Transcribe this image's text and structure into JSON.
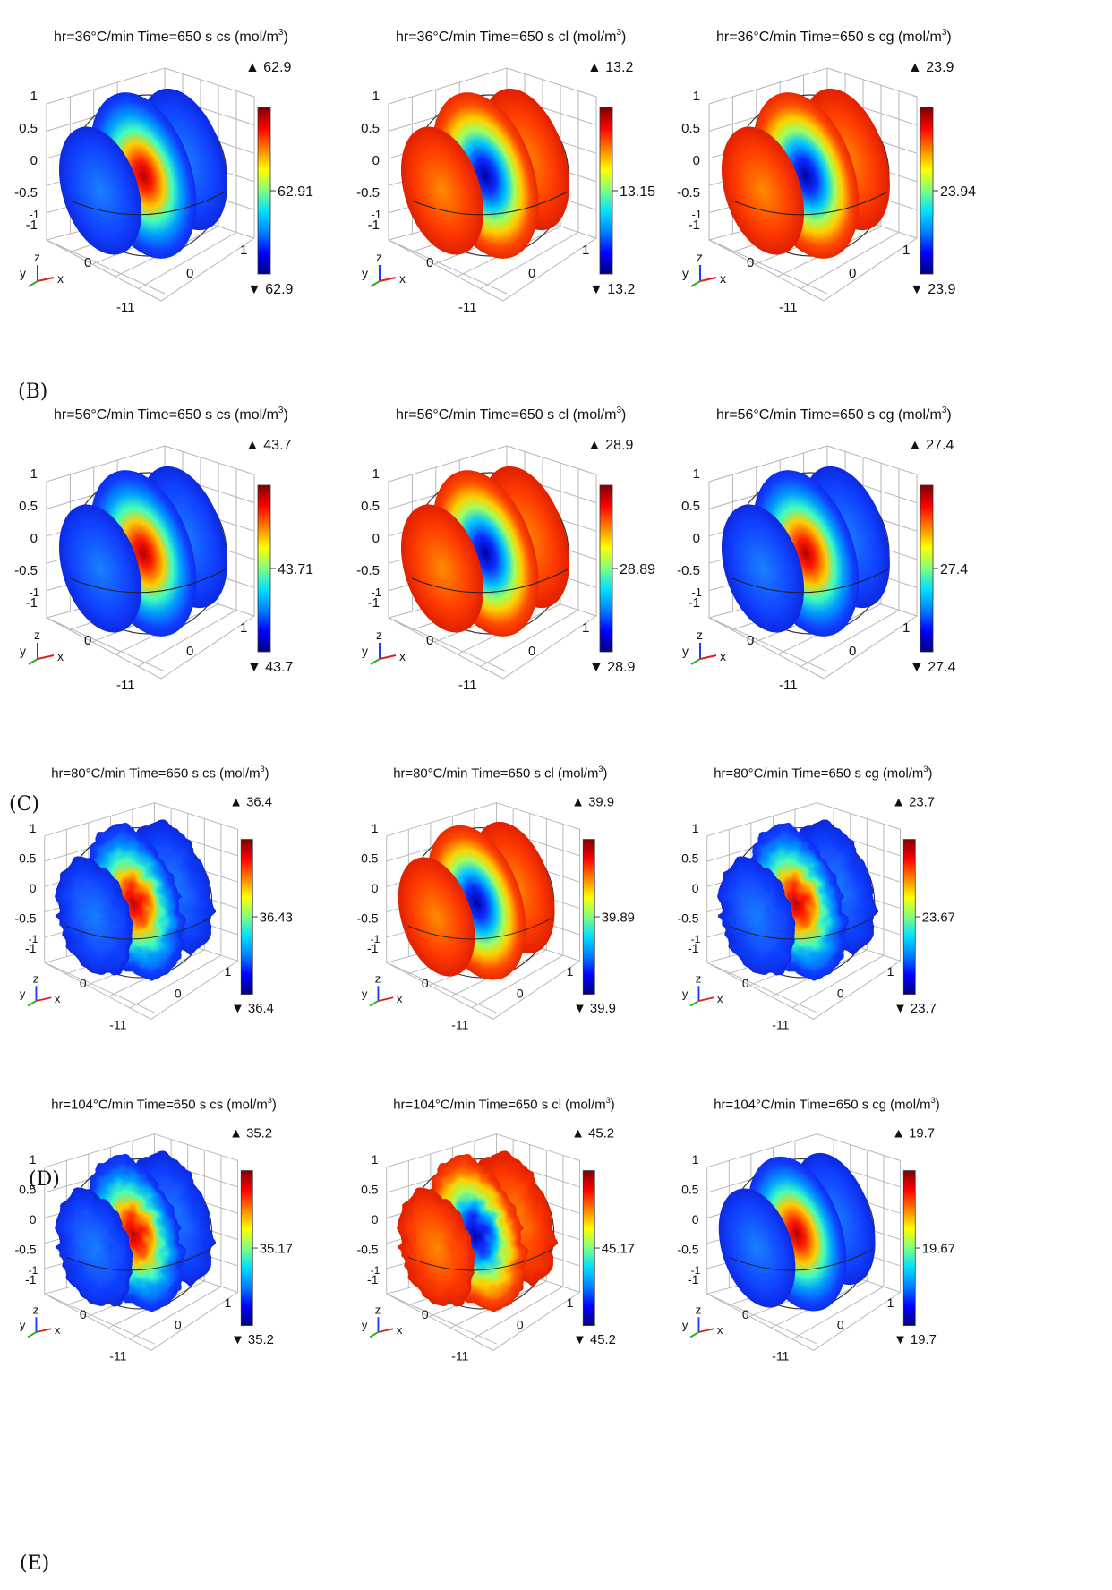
{
  "section_labels": [
    "(B)",
    "(C)",
    "(D)",
    "(E)"
  ],
  "axis_ticks": {
    "z": [
      "1",
      "0.5",
      "0",
      "-0.5",
      "-1"
    ],
    "x_corner": "1",
    "mid": "0",
    "front": "-11",
    "left": "0"
  },
  "triad": {
    "y": "y",
    "z": "z",
    "x": "x"
  },
  "colormap": [
    "#00007f",
    "#0000ff",
    "#0080ff",
    "#00e0ff",
    "#7fff7f",
    "#ffff00",
    "#ff8000",
    "#ff0000",
    "#7f0000"
  ],
  "chart_data": [
    {
      "type": "heatmap",
      "title": "hr=36°C/min Time=650 s",
      "quantity": "cs (mol/m",
      "unit_exp": "3",
      ")": ")",
      "max": "62.9",
      "mid": "62.91",
      "min": "62.9",
      "pattern": "center-high"
    },
    {
      "type": "heatmap",
      "title": "hr=36°C/min Time=650 s",
      "quantity": "cl (mol/m",
      "unit_exp": "3",
      "max": "13.2",
      "mid": "13.15",
      "min": "13.2",
      "pattern": "center-low"
    },
    {
      "type": "heatmap",
      "title": "hr=36°C/min Time=650 s",
      "quantity": "cg (mol/m",
      "unit_exp": "3",
      "max": "23.9",
      "mid": "23.94",
      "min": "23.9",
      "pattern": "center-low"
    },
    {
      "type": "heatmap",
      "title": "hr=56°C/min Time=650 s",
      "quantity": "cs (mol/m",
      "unit_exp": "3",
      "max": "43.7",
      "mid": "43.71",
      "min": "43.7",
      "pattern": "center-high"
    },
    {
      "type": "heatmap",
      "title": "hr=56°C/min Time=650 s",
      "quantity": "cl (mol/m",
      "unit_exp": "3",
      "max": "28.9",
      "mid": "28.89",
      "min": "28.9",
      "pattern": "center-low"
    },
    {
      "type": "heatmap",
      "title": "hr=56°C/min Time=650 s",
      "quantity": "cg (mol/m",
      "unit_exp": "3",
      "max": "27.4",
      "mid": "27.4",
      "min": "27.4",
      "pattern": "center-high"
    },
    {
      "type": "heatmap",
      "title": "hr=80°C/min Time=650 s",
      "quantity": "cs (mol/m",
      "unit_exp": "3",
      "max": "36.4",
      "mid": "36.43",
      "min": "36.4",
      "pattern": "center-high-noisy"
    },
    {
      "type": "heatmap",
      "title": "hr=80°C/min Time=650 s",
      "quantity": "cl (mol/m",
      "unit_exp": "3",
      "max": "39.9",
      "mid": "39.89",
      "min": "39.9",
      "pattern": "center-low"
    },
    {
      "type": "heatmap",
      "title": "hr=80°C/min Time=650 s",
      "quantity": "cg (mol/m",
      "unit_exp": "3",
      "max": "23.7",
      "mid": "23.67",
      "min": "23.7",
      "pattern": "center-high-noisy"
    },
    {
      "type": "heatmap",
      "title": "hr=104°C/min Time=650 s",
      "quantity": "cs (mol/m",
      "unit_exp": "3",
      "max": "35.2",
      "mid": "35.17",
      "min": "35.2",
      "pattern": "center-high-noisy"
    },
    {
      "type": "heatmap",
      "title": "hr=104°C/min Time=650 s",
      "quantity": "cl (mol/m",
      "unit_exp": "3",
      "max": "45.2",
      "mid": "45.17",
      "min": "45.2",
      "pattern": "center-low-noisy"
    },
    {
      "type": "heatmap",
      "title": "hr=104°C/min Time=650 s",
      "quantity": "cg (mol/m",
      "unit_exp": "3",
      "max": "19.7",
      "mid": "19.67",
      "min": "19.7",
      "pattern": "center-high"
    }
  ]
}
